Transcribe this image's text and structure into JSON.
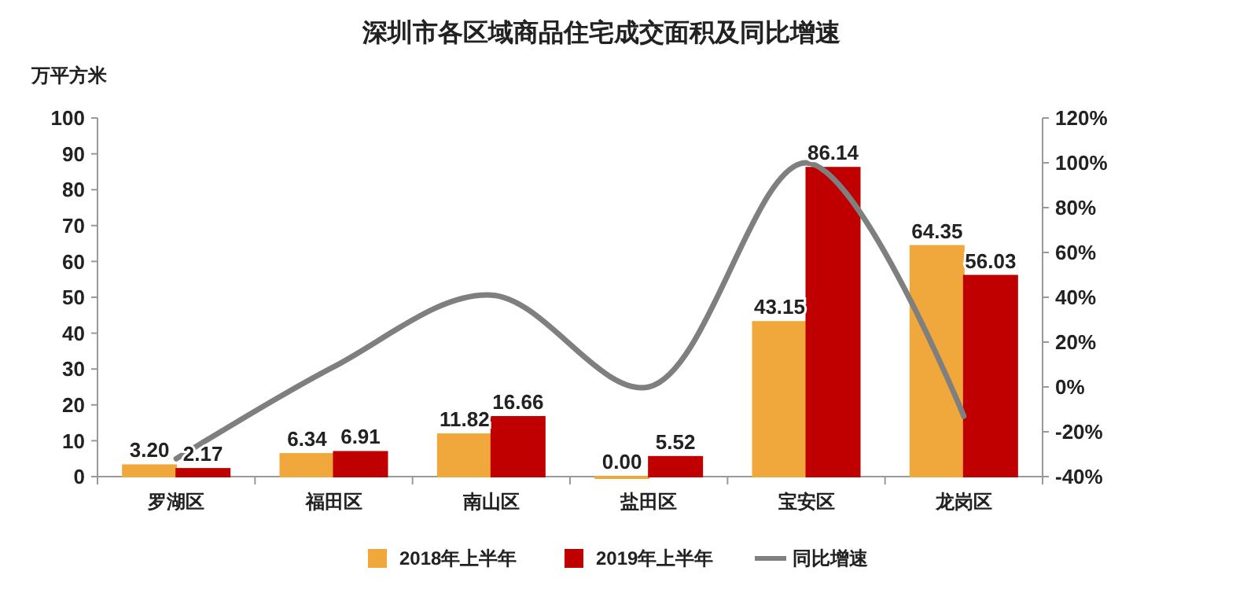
{
  "chart_data": {
    "type": "bar",
    "title": "深圳市各区域商品住宅成交面积及同比增速",
    "ylabel": "万平方米",
    "categories": [
      "罗湖区",
      "福田区",
      "南山区",
      "盐田区",
      "宝安区",
      "龙岗区"
    ],
    "series": [
      {
        "name": "2018年上半年",
        "color": "#f0a83c",
        "values": [
          3.2,
          6.34,
          11.82,
          0,
          43.15,
          64.35
        ],
        "value_labels": [
          "3.20",
          "6.34",
          "11.82",
          "0.00",
          "43.15",
          "64.35"
        ]
      },
      {
        "name": "2019年上半年",
        "color": "#c00000",
        "values": [
          2.17,
          6.91,
          16.66,
          5.52,
          86.14,
          56.03
        ],
        "value_labels": [
          "2.17",
          "6.91",
          "16.66",
          "5.52",
          "86.14",
          "56.03"
        ]
      },
      {
        "name": "同比增速",
        "type": "line",
        "axis": "y2",
        "color": "#7f7f7f",
        "values": [
          -32,
          9,
          41,
          0,
          100,
          -13
        ]
      }
    ],
    "ylim": [
      0,
      100
    ],
    "yticks": [
      0,
      10,
      20,
      30,
      40,
      50,
      60,
      70,
      80,
      90,
      100
    ],
    "y2lim": [
      -40,
      120
    ],
    "y2ticks": [
      {
        "value": -40,
        "label": "-40%"
      },
      {
        "value": -20,
        "label": "-20%"
      },
      {
        "value": 0,
        "label": "0%"
      },
      {
        "value": 20,
        "label": "20%"
      },
      {
        "value": 40,
        "label": "40%"
      },
      {
        "value": 60,
        "label": "60%"
      },
      {
        "value": 80,
        "label": "80%"
      },
      {
        "value": 100,
        "label": "100%"
      },
      {
        "value": 120,
        "label": "120%"
      }
    ],
    "legend": "bottom"
  }
}
